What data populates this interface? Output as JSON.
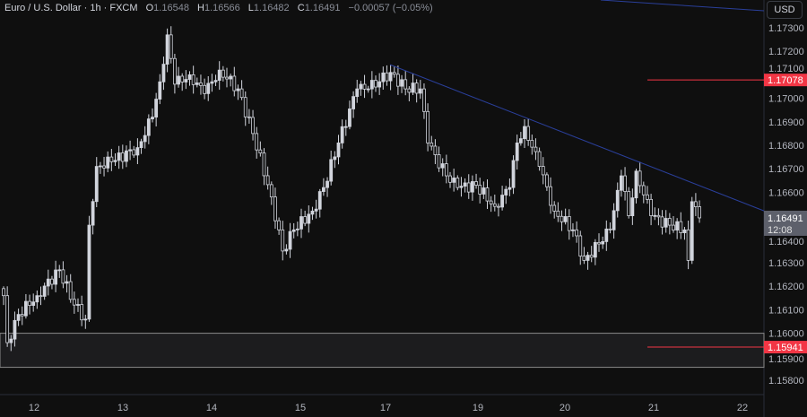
{
  "legend": {
    "symbol": "Euro / U.S. Dollar · 1h · FXCM",
    "open_label": "O",
    "open": "1.16548",
    "high_label": "H",
    "high": "1.16566",
    "low_label": "L",
    "low": "1.16482",
    "close_label": "C",
    "close": "1.16491",
    "change": "−0.00057 (−0.05%)"
  },
  "currency_button": "USD",
  "price_axis": {
    "ticks": [
      "1.17300",
      "1.17200",
      "1.17100",
      "1.17000",
      "1.16900",
      "1.16800",
      "1.16700",
      "1.16600",
      "1.16400",
      "1.16300",
      "1.16200",
      "1.16100",
      "1.16000",
      "1.15900",
      "1.15800"
    ],
    "range": [
      1.1572,
      1.1742
    ]
  },
  "time_axis": {
    "labels": [
      "12",
      "13",
      "14",
      "15",
      "17",
      "19",
      "20",
      "21",
      "22"
    ]
  },
  "markers": {
    "resistance": {
      "price": 1.17078,
      "label": "1.17078",
      "color": "#f23645"
    },
    "support": {
      "price": 1.15941,
      "label": "1.15941",
      "color": "#f23645"
    },
    "last": {
      "price": 1.16491,
      "label": "1.16491",
      "countdown": "12:08",
      "color": "#5d606b"
    }
  },
  "support_zone": {
    "top": 1.16,
    "bottom": 1.15855
  },
  "trendline": {
    "from": 1.17143,
    "to": 1.16521,
    "color": "#2a3f9a"
  },
  "candle_color": "#d1d4dc",
  "close_keypoints": [
    [
      0,
      1.1616
    ],
    [
      1,
      1.1596
    ],
    [
      4,
      1.1608
    ],
    [
      9,
      1.1616
    ],
    [
      15,
      1.1627
    ],
    [
      19,
      1.1612
    ],
    [
      22,
      1.1606
    ],
    [
      23,
      1.1646
    ],
    [
      25,
      1.1671
    ],
    [
      29,
      1.1673
    ],
    [
      36,
      1.1679
    ],
    [
      40,
      1.1692
    ],
    [
      42,
      1.1707
    ],
    [
      44,
      1.1727
    ],
    [
      46,
      1.1706
    ],
    [
      50,
      1.171
    ],
    [
      54,
      1.1702
    ],
    [
      58,
      1.1712
    ],
    [
      63,
      1.1704
    ],
    [
      67,
      1.1685
    ],
    [
      72,
      1.1658
    ],
    [
      75,
      1.1635
    ],
    [
      78,
      1.1644
    ],
    [
      83,
      1.1652
    ],
    [
      86,
      1.1662
    ],
    [
      90,
      1.1681
    ],
    [
      95,
      1.1704
    ],
    [
      98,
      1.1704
    ],
    [
      104,
      1.1711
    ],
    [
      108,
      1.1704
    ],
    [
      112,
      1.1704
    ],
    [
      114,
      1.1681
    ],
    [
      119,
      1.1667
    ],
    [
      122,
      1.1662
    ],
    [
      127,
      1.1663
    ],
    [
      132,
      1.1654
    ],
    [
      136,
      1.1662
    ],
    [
      138,
      1.1681
    ],
    [
      140,
      1.1688
    ],
    [
      144,
      1.1671
    ],
    [
      148,
      1.1652
    ],
    [
      153,
      1.1644
    ],
    [
      156,
      1.1631
    ],
    [
      160,
      1.1638
    ],
    [
      163,
      1.1644
    ],
    [
      166,
      1.1667
    ],
    [
      168,
      1.165
    ],
    [
      170,
      1.1669
    ],
    [
      174,
      1.165
    ],
    [
      179,
      1.1646
    ],
    [
      183,
      1.1644
    ],
    [
      184,
      1.1631
    ],
    [
      185,
      1.1656
    ],
    [
      187,
      1.16491
    ]
  ]
}
